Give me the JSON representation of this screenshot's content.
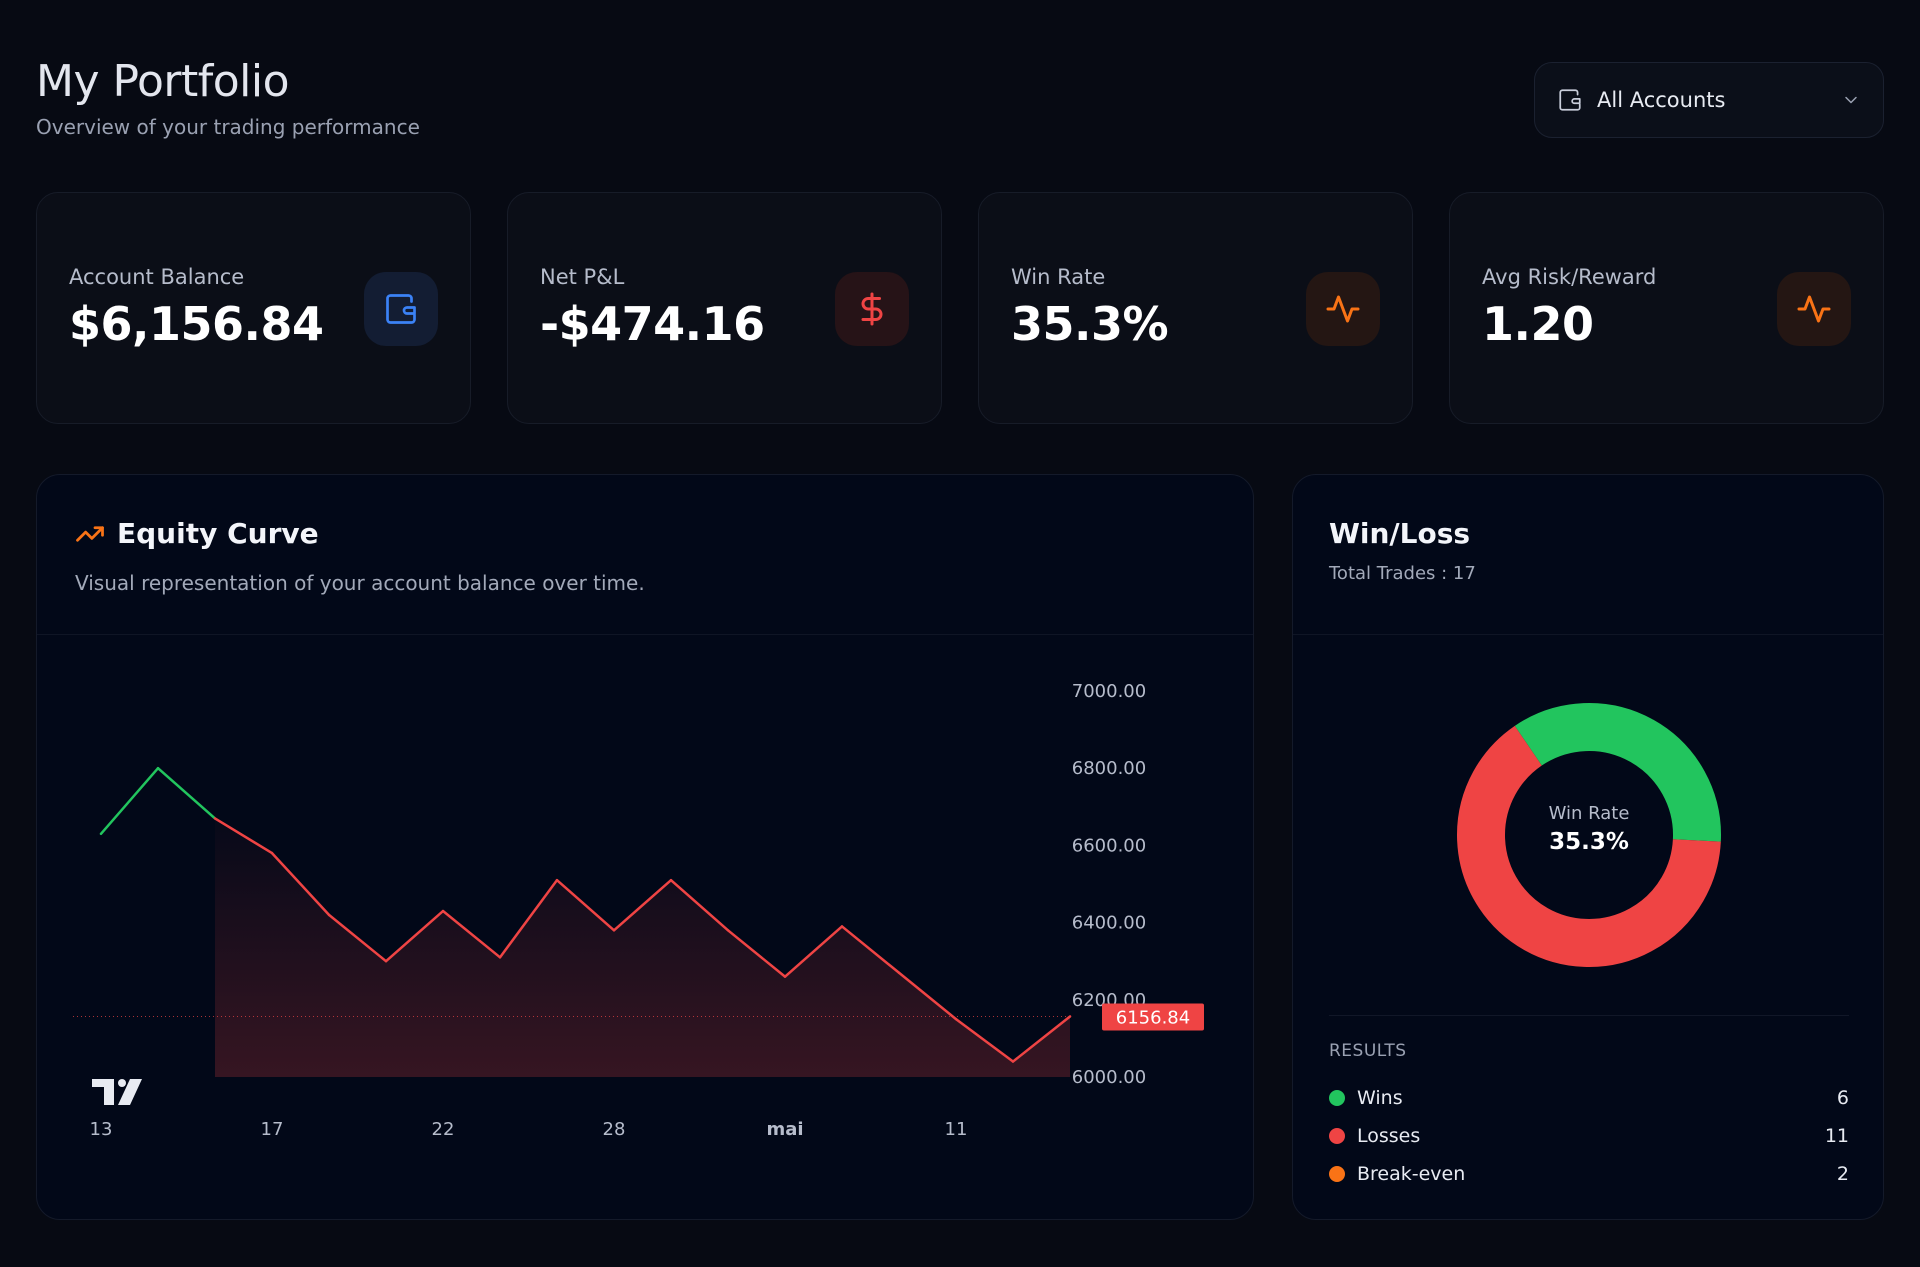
{
  "header": {
    "title": "My Portfolio",
    "subtitle": "Overview of your trading performance"
  },
  "account_select": {
    "value": "All Accounts",
    "icon": "wallet-icon"
  },
  "stats": [
    {
      "label": "Account Balance",
      "value": "$6,156.84",
      "icon": "wallet-icon",
      "color": "#3b82f6",
      "bg": "#131d33"
    },
    {
      "label": "Net P&L",
      "value": "-$474.16",
      "icon": "dollar-icon",
      "color": "#ef4444",
      "bg": "#261317"
    },
    {
      "label": "Win Rate",
      "value": "35.3%",
      "icon": "activity-icon",
      "color": "#f97316",
      "bg": "#241613"
    },
    {
      "label": "Avg Risk/Reward",
      "value": "1.20",
      "icon": "activity-icon",
      "color": "#f97316",
      "bg": "#241613"
    }
  ],
  "equity": {
    "title": "Equity Curve",
    "description": "Visual representation of your account balance over time.",
    "icon": "trending-up-icon"
  },
  "chart_data": {
    "type": "line",
    "y": [
      6630,
      6800,
      6670,
      6580,
      6420,
      6300,
      6430,
      6310,
      6510,
      6380,
      6510,
      6380,
      6260,
      6390,
      6270,
      6150,
      6040,
      6156.84
    ],
    "x_ticks": [
      "13",
      "17",
      "22",
      "28",
      "mai",
      "11"
    ],
    "y_ticks": [
      "7000.00",
      "6800.00",
      "6600.00",
      "6400.00",
      "6200.00",
      "6000.00"
    ],
    "ylim": [
      6000,
      7000
    ],
    "last_value_label": "6156.84",
    "baseline_value": 6156.84,
    "colors": {
      "up": "#22c55e",
      "down": "#ef4444"
    }
  },
  "winloss": {
    "title": "Win/Loss",
    "subtitle": "Total Trades : 17",
    "center_label": "Win Rate",
    "center_value": "35.3%",
    "results_title": "RESULTS",
    "results": [
      {
        "name": "Wins",
        "value": "6",
        "color": "#22c55e"
      },
      {
        "name": "Losses",
        "value": "11",
        "color": "#ef4444"
      },
      {
        "name": "Break-even",
        "value": "2",
        "color": "#f97316"
      }
    ]
  }
}
